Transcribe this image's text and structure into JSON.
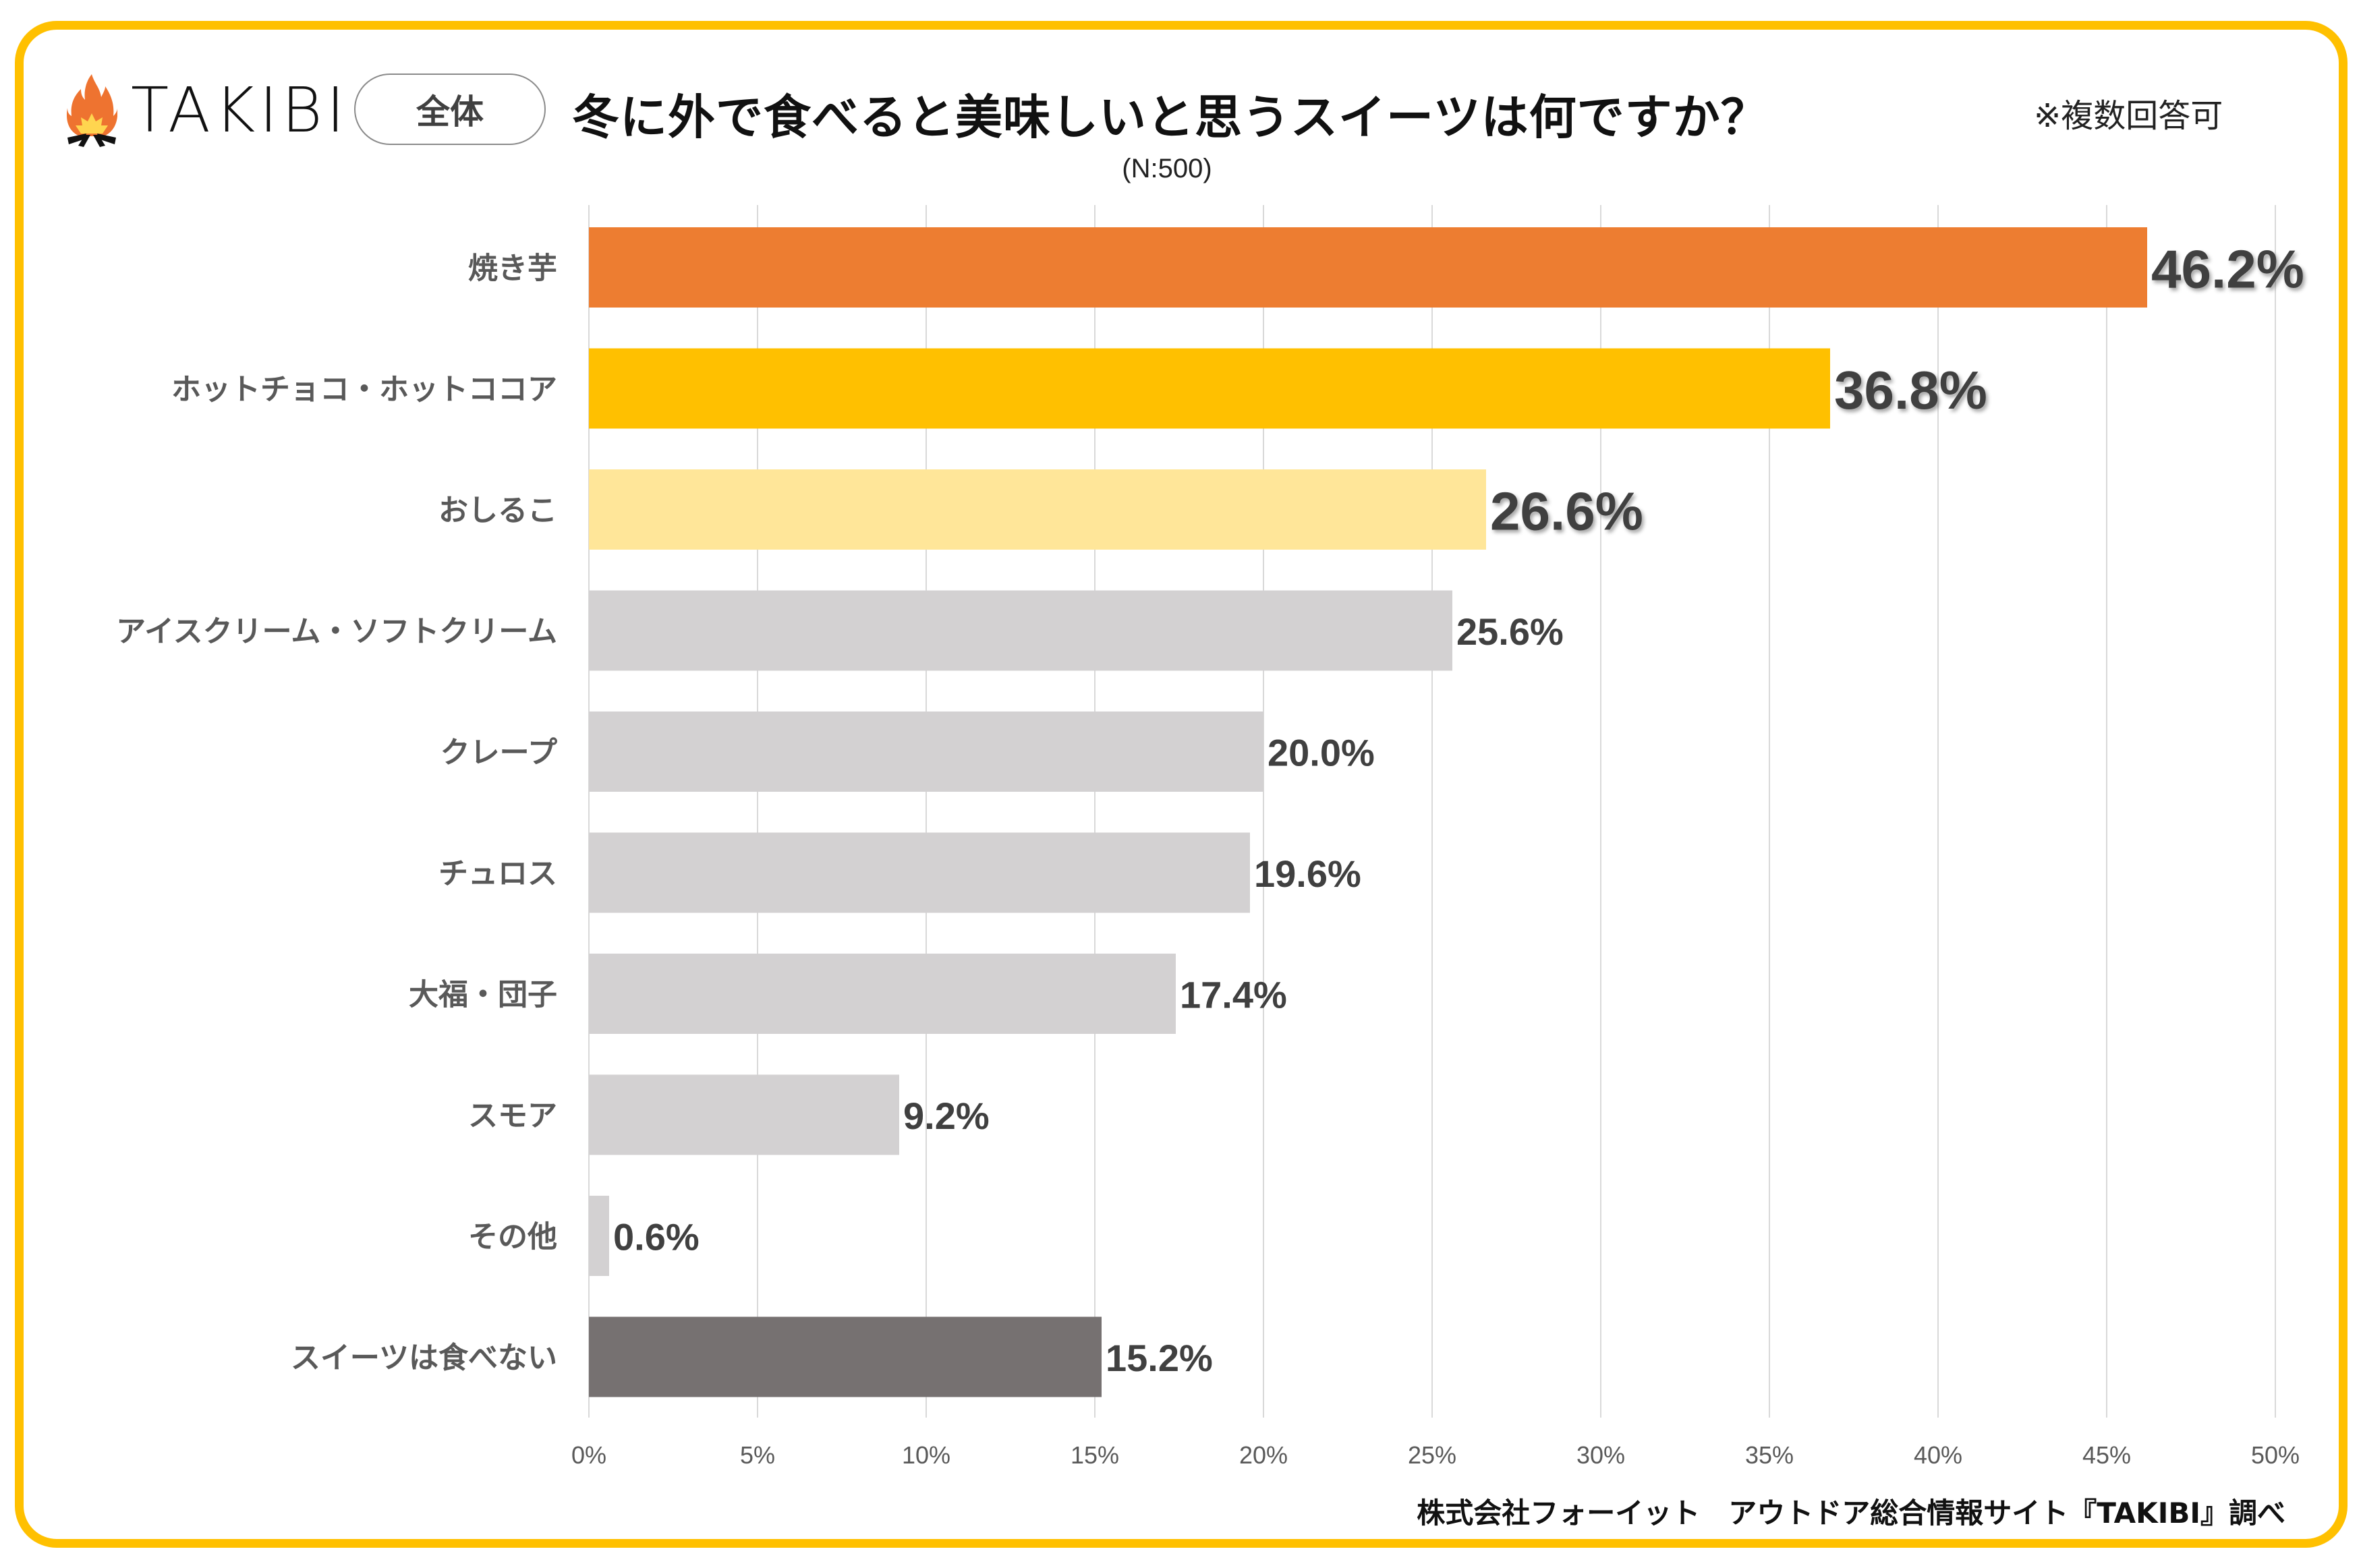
{
  "brand": {
    "name": "TAKIBI",
    "logo_icon": "campfire-icon"
  },
  "segment_label": "全体",
  "header": {
    "title": "冬に外で食べると美味しいと思うスイーツは何ですか？",
    "sample_size": "(N:500)",
    "note": "※複数回答可"
  },
  "footer": {
    "source": "株式会社フォーイット　アウトドア総合情報サイト『TAKIBI』調べ"
  },
  "colors": {
    "border": "#FFC000",
    "rank1": "#ED7D31",
    "rank2": "#FFC000",
    "rank3": "#FFE699",
    "other": "#D3D1D2",
    "none": "#767171",
    "rank1_label": "#ED7D31",
    "label": "#404040"
  },
  "chart_data": {
    "type": "bar",
    "orientation": "horizontal",
    "title": "冬に外で食べると美味しいと思うスイーツは何ですか？",
    "subtitle": "(N:500)",
    "xlabel": "",
    "ylabel": "",
    "xlim": [
      0,
      50
    ],
    "x_unit": "%",
    "grid": true,
    "xticks": [
      "0%",
      "5%",
      "10%",
      "15%",
      "20%",
      "25%",
      "30%",
      "35%",
      "40%",
      "45%",
      "50%"
    ],
    "categories": [
      "焼き芋",
      "ホットチョコ・ホットココア",
      "おしるこ",
      "アイスクリーム・ソフトクリーム",
      "クレープ",
      "チュロス",
      "大福・団子",
      "スモア",
      "その他",
      "スイーツは食べない"
    ],
    "values": [
      46.2,
      36.8,
      26.6,
      25.6,
      20.0,
      19.6,
      17.4,
      9.2,
      0.6,
      15.2
    ],
    "value_labels": [
      "46.2%",
      "36.8%",
      "26.6%",
      "25.6%",
      "20.0%",
      "19.6%",
      "17.4%",
      "9.2%",
      "0.6%",
      "15.2%"
    ],
    "bar_colors": [
      "#ED7D31",
      "#FFC000",
      "#FFE699",
      "#D3D1D2",
      "#D3D1D2",
      "#D3D1D2",
      "#D3D1D2",
      "#D3D1D2",
      "#D3D1D2",
      "#767171"
    ],
    "highlight": [
      true,
      true,
      true,
      false,
      false,
      false,
      false,
      false,
      false,
      false
    ]
  }
}
